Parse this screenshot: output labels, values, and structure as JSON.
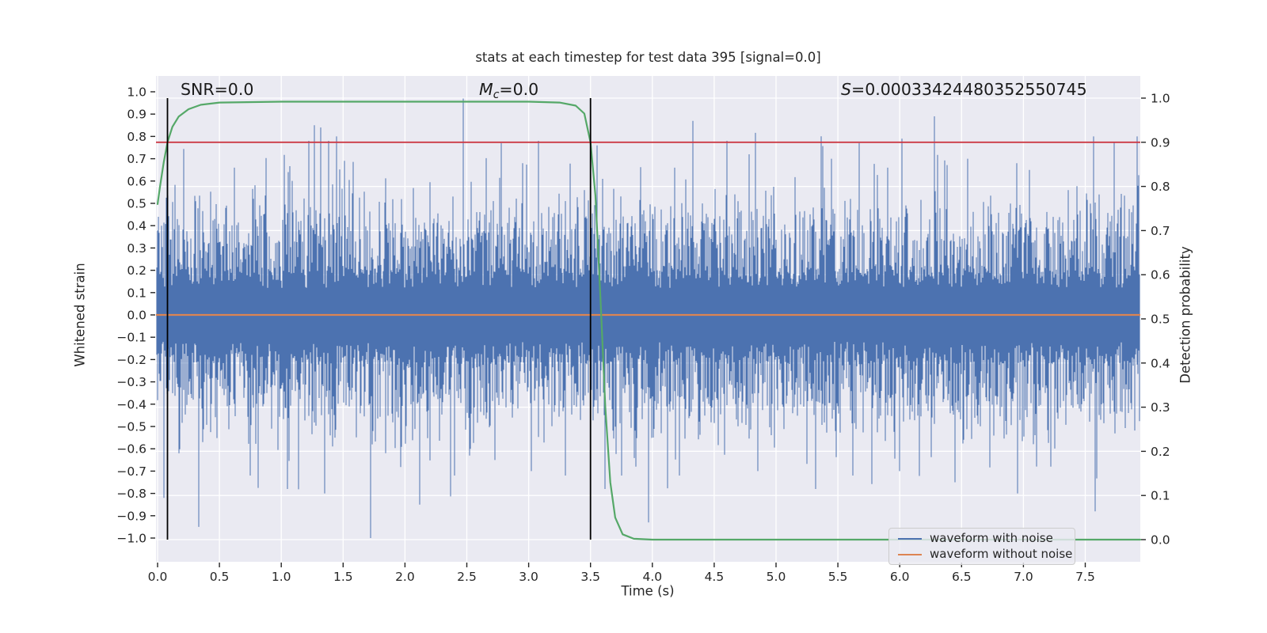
{
  "chart_data": {
    "type": "line",
    "title": "stats at each timestep for test data 395 [signal=0.0]",
    "xlabel": "Time (s)",
    "ylabel_left": "Whitened strain",
    "ylabel_right": "Detection probability",
    "xlim": [
      0.0,
      7.945
    ],
    "ylim_left": [
      -1.0,
      1.0
    ],
    "ylim_right": [
      0.0,
      1.0
    ],
    "grid": true,
    "x_ticks": [
      0.0,
      0.5,
      1.0,
      1.5,
      2.0,
      2.5,
      3.0,
      3.5,
      4.0,
      4.5,
      5.0,
      5.5,
      6.0,
      6.5,
      7.0,
      7.5
    ],
    "y_ticks_left": [
      1.0,
      0.9,
      0.8,
      0.7,
      0.6,
      0.5,
      0.4,
      0.3,
      0.2,
      0.1,
      0.0,
      -0.1,
      -0.2,
      -0.3,
      -0.4,
      -0.5,
      -0.6,
      -0.7,
      -0.8,
      -0.9,
      -1.0
    ],
    "y_ticks_right": [
      1.0,
      0.9,
      0.8,
      0.7,
      0.6,
      0.5,
      0.4,
      0.3,
      0.2,
      0.1,
      0.0
    ],
    "annotations": [
      {
        "id": "snr",
        "var": "SNR",
        "sub": "",
        "value": "=0.0"
      },
      {
        "id": "mc",
        "var": "M",
        "sub": "c",
        "value": "=0.0"
      },
      {
        "id": "s",
        "var": "S",
        "sub": "",
        "value": "=0.00033424480352550745"
      }
    ],
    "colors": {
      "axes_background": "#EAEAF2",
      "grid": "#FFFFFF",
      "noise_blue": "#4C72B0",
      "clean_orange": "#DD8452",
      "probability_green": "#55A868",
      "threshold_red": "#CC3944",
      "marker_black": "#000000",
      "text": "#262626"
    },
    "series": [
      {
        "name": "waveform with noise",
        "axis": "left",
        "type": "noise-band",
        "color": "#4C72B0",
        "noise": {
          "seed": 77,
          "samples_per_column": 4,
          "sigma": 0.21,
          "band": [
            0.12,
            0.22
          ],
          "mid_spike_prob": 0.32,
          "mid_spike_base": 0.3,
          "mid_spike_scale": 0.13,
          "big_spike_prob": 0.013,
          "big_spike_min": 0.5,
          "big_spike_max": 0.82
        },
        "landmark_spikes": [
          {
            "t": 0.05,
            "v": -0.82
          },
          {
            "t": 0.08,
            "v": 0.75
          },
          {
            "t": 0.33,
            "v": -0.95
          },
          {
            "t": 0.62,
            "v": 0.66
          },
          {
            "t": 0.75,
            "v": -0.72
          },
          {
            "t": 1.05,
            "v": -0.78
          },
          {
            "t": 1.22,
            "v": 0.78
          },
          {
            "t": 1.27,
            "v": 0.85
          },
          {
            "t": 1.32,
            "v": 0.84
          },
          {
            "t": 1.35,
            "v": -0.8
          },
          {
            "t": 1.38,
            "v": 0.78
          },
          {
            "t": 1.45,
            "v": 0.8
          },
          {
            "t": 1.72,
            "v": -1.0
          },
          {
            "t": 2.12,
            "v": -0.85
          },
          {
            "t": 2.4,
            "v": -0.72
          },
          {
            "t": 2.47,
            "v": 0.97
          },
          {
            "t": 2.52,
            "v": -0.63
          },
          {
            "t": 2.78,
            "v": 0.77
          },
          {
            "t": 2.95,
            "v": 0.68
          },
          {
            "t": 3.02,
            "v": -0.7
          },
          {
            "t": 3.08,
            "v": 0.78
          },
          {
            "t": 3.3,
            "v": -0.72
          },
          {
            "t": 3.55,
            "v": 0.76
          },
          {
            "t": 3.62,
            "v": -0.78
          },
          {
            "t": 3.75,
            "v": -0.72
          },
          {
            "t": 3.97,
            "v": -0.93
          },
          {
            "t": 4.18,
            "v": 0.66
          },
          {
            "t": 4.22,
            "v": -0.72
          },
          {
            "t": 4.33,
            "v": 0.87
          },
          {
            "t": 4.6,
            "v": 0.78
          },
          {
            "t": 4.78,
            "v": 0.72
          },
          {
            "t": 4.85,
            "v": -0.7
          },
          {
            "t": 5.32,
            "v": -0.78
          },
          {
            "t": 5.45,
            "v": 0.7
          },
          {
            "t": 5.62,
            "v": -0.72
          },
          {
            "t": 5.9,
            "v": 0.66
          },
          {
            "t": 6.0,
            "v": -0.7
          },
          {
            "t": 6.02,
            "v": 0.79
          },
          {
            "t": 6.28,
            "v": 0.89
          },
          {
            "t": 6.45,
            "v": -0.75
          },
          {
            "t": 6.55,
            "v": 0.7
          },
          {
            "t": 6.95,
            "v": -0.8
          },
          {
            "t": 7.05,
            "v": 0.65
          },
          {
            "t": 7.22,
            "v": -0.68
          },
          {
            "t": 7.57,
            "v": 0.8
          },
          {
            "t": 7.58,
            "v": -0.88
          },
          {
            "t": 7.92,
            "v": 0.8
          }
        ]
      },
      {
        "name": "waveform without noise",
        "axis": "left",
        "type": "hline",
        "color": "#DD8452",
        "value": 0.0
      },
      {
        "name": "detection probability",
        "axis": "right",
        "type": "line",
        "color": "#55A868",
        "points": [
          [
            0.0,
            0.76
          ],
          [
            0.02,
            0.8
          ],
          [
            0.05,
            0.855
          ],
          [
            0.08,
            0.9
          ],
          [
            0.12,
            0.935
          ],
          [
            0.17,
            0.958
          ],
          [
            0.25,
            0.975
          ],
          [
            0.35,
            0.985
          ],
          [
            0.5,
            0.99
          ],
          [
            1.0,
            0.992
          ],
          [
            3.0,
            0.992
          ],
          [
            3.25,
            0.99
          ],
          [
            3.38,
            0.983
          ],
          [
            3.45,
            0.965
          ],
          [
            3.5,
            0.9
          ],
          [
            3.54,
            0.78
          ],
          [
            3.58,
            0.55
          ],
          [
            3.62,
            0.3
          ],
          [
            3.66,
            0.13
          ],
          [
            3.7,
            0.05
          ],
          [
            3.76,
            0.012
          ],
          [
            3.85,
            0.002
          ],
          [
            4.0,
            0.0
          ],
          [
            7.945,
            0.0
          ]
        ]
      },
      {
        "name": "detection threshold",
        "axis": "right",
        "type": "hline",
        "color": "#CC3944",
        "value": 0.9
      },
      {
        "name": "marker line start",
        "axis": "right",
        "type": "vline",
        "color": "#000000",
        "t": 0.08,
        "from": 0.0,
        "to": 1.0
      },
      {
        "name": "marker line end",
        "axis": "right",
        "type": "vline",
        "color": "#000000",
        "t": 3.5,
        "from": 0.0,
        "to": 1.0
      }
    ],
    "legend": {
      "position": "lower right",
      "items": [
        {
          "label": "waveform with noise",
          "color": "#4C72B0"
        },
        {
          "label": "waveform without noise",
          "color": "#DD8452"
        }
      ]
    }
  }
}
